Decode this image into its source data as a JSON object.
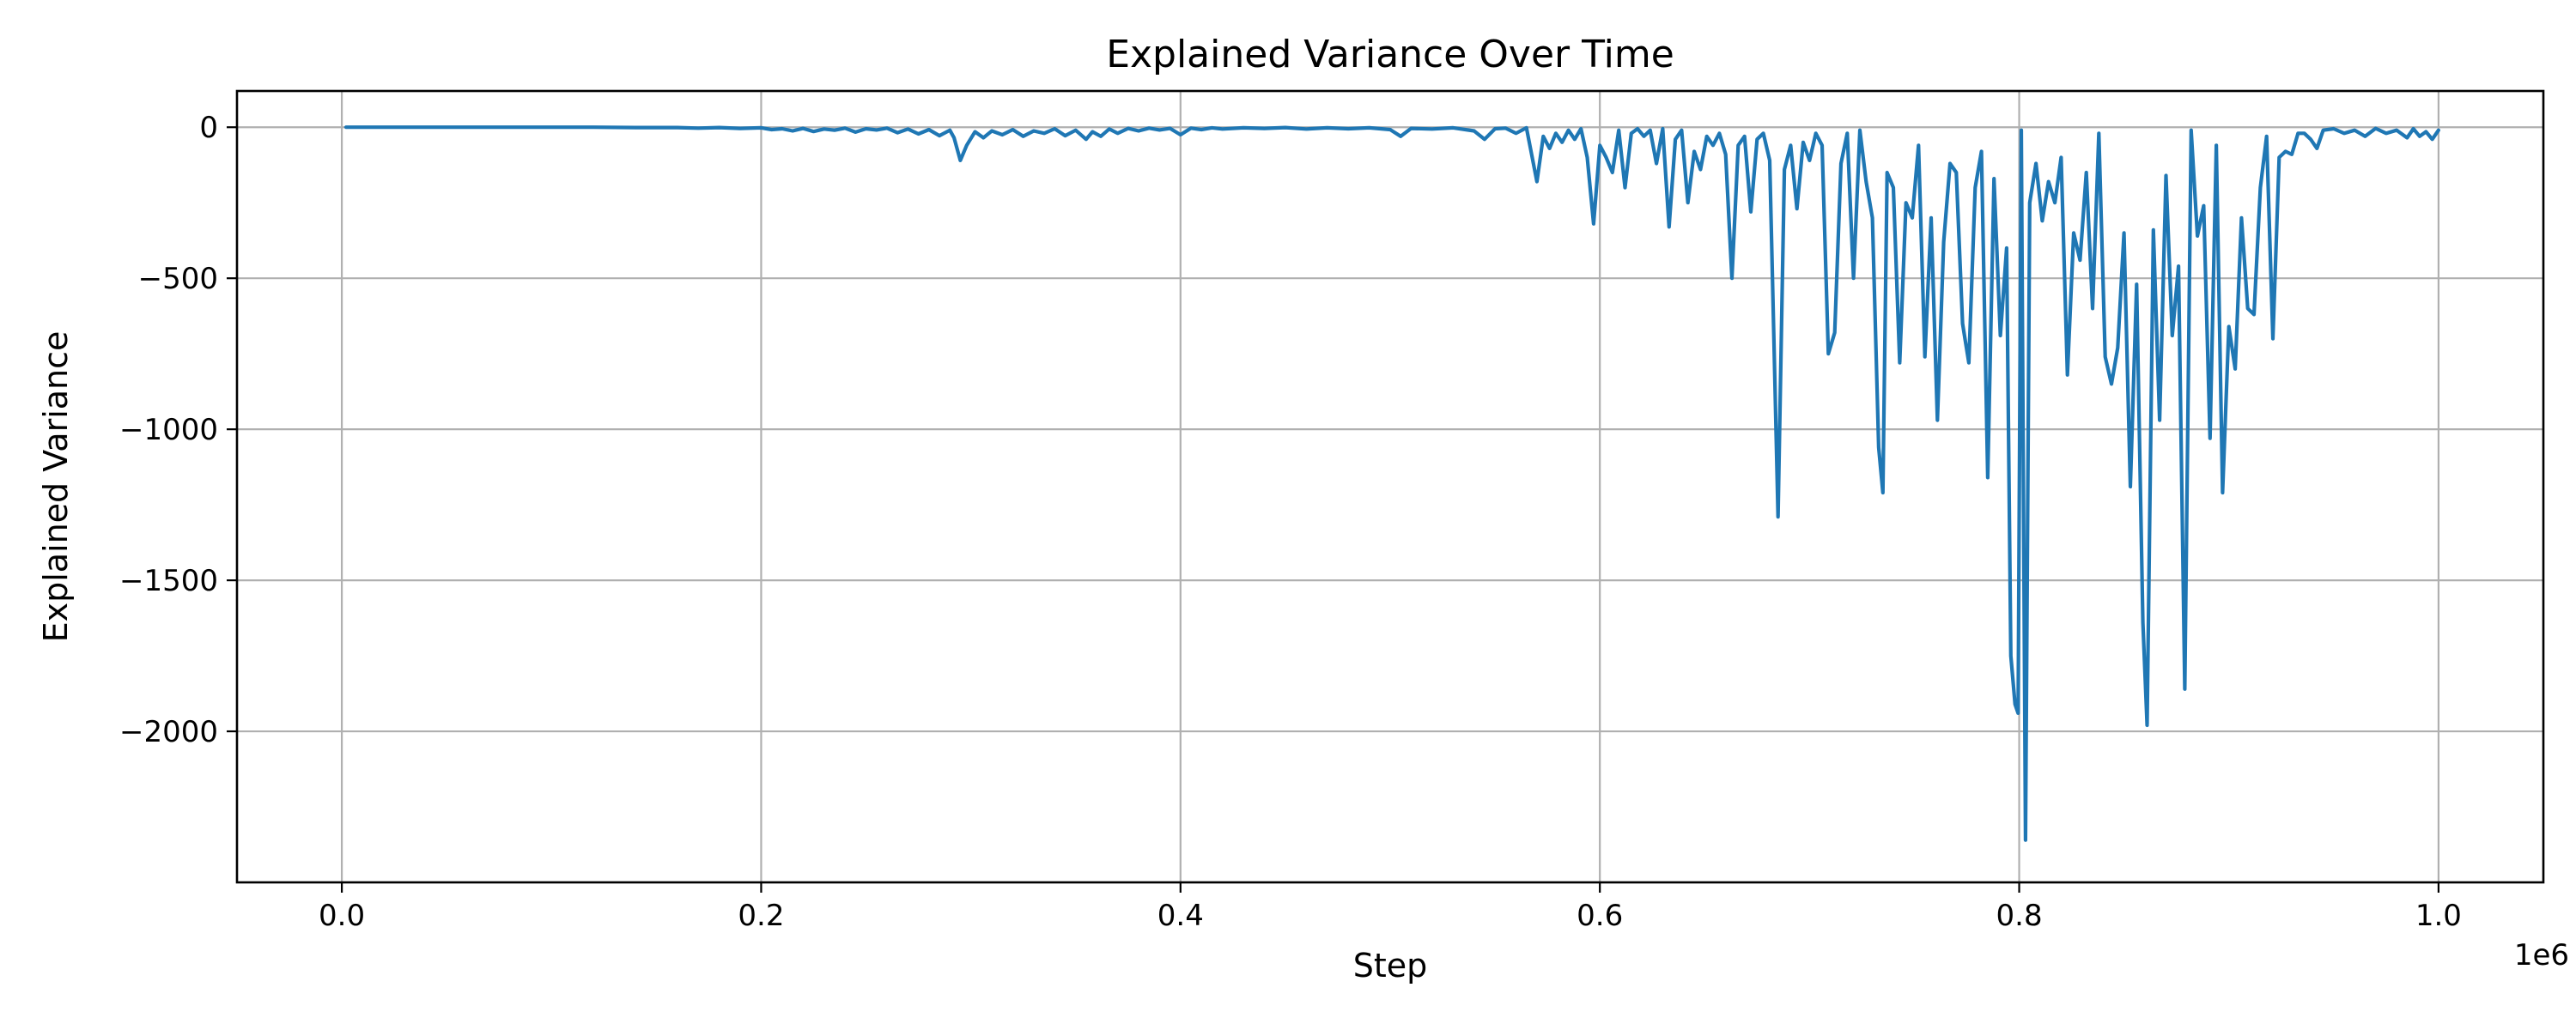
{
  "chart_data": {
    "type": "line",
    "title": "Explained Variance Over Time",
    "xlabel": "Step",
    "ylabel": "Explained Variance",
    "x_offset_label": "1e6",
    "xlim": [
      -50000,
      1050000
    ],
    "ylim": [
      -2500,
      120
    ],
    "x_ticks": [
      0,
      200000,
      400000,
      600000,
      800000,
      1000000
    ],
    "x_tick_labels": [
      "0.0",
      "0.2",
      "0.4",
      "0.6",
      "0.8",
      "1.0"
    ],
    "y_ticks": [
      0,
      -500,
      -1000,
      -1500,
      -2000
    ],
    "y_tick_labels": [
      "0",
      "−500",
      "−1000",
      "−1500",
      "−2000"
    ],
    "grid": true,
    "series_color": "#1f77b4",
    "series": [
      {
        "values": [
          [
            2000,
            0
          ],
          [
            20000,
            0
          ],
          [
            40000,
            0
          ],
          [
            60000,
            0
          ],
          [
            80000,
            0
          ],
          [
            100000,
            0
          ],
          [
            120000,
            0
          ],
          [
            140000,
            -1
          ],
          [
            160000,
            -1
          ],
          [
            170000,
            -3
          ],
          [
            180000,
            -1
          ],
          [
            190000,
            -4
          ],
          [
            200000,
            -2
          ],
          [
            205000,
            -8
          ],
          [
            210000,
            -5
          ],
          [
            215000,
            -12
          ],
          [
            220000,
            -4
          ],
          [
            225000,
            -14
          ],
          [
            230000,
            -6
          ],
          [
            235000,
            -10
          ],
          [
            240000,
            -3
          ],
          [
            245000,
            -16
          ],
          [
            250000,
            -5
          ],
          [
            255000,
            -9
          ],
          [
            260000,
            -3
          ],
          [
            265000,
            -18
          ],
          [
            270000,
            -6
          ],
          [
            275000,
            -22
          ],
          [
            280000,
            -8
          ],
          [
            285000,
            -28
          ],
          [
            290000,
            -10
          ],
          [
            292000,
            -35
          ],
          [
            295000,
            -110
          ],
          [
            298000,
            -60
          ],
          [
            302000,
            -15
          ],
          [
            306000,
            -35
          ],
          [
            310000,
            -12
          ],
          [
            315000,
            -25
          ],
          [
            320000,
            -8
          ],
          [
            325000,
            -30
          ],
          [
            330000,
            -12
          ],
          [
            335000,
            -20
          ],
          [
            340000,
            -5
          ],
          [
            345000,
            -28
          ],
          [
            350000,
            -10
          ],
          [
            355000,
            -40
          ],
          [
            358000,
            -15
          ],
          [
            362000,
            -30
          ],
          [
            366000,
            -6
          ],
          [
            370000,
            -20
          ],
          [
            375000,
            -4
          ],
          [
            380000,
            -12
          ],
          [
            385000,
            -3
          ],
          [
            390000,
            -9
          ],
          [
            395000,
            -4
          ],
          [
            400000,
            -25
          ],
          [
            405000,
            -3
          ],
          [
            410000,
            -8
          ],
          [
            415000,
            -2
          ],
          [
            420000,
            -6
          ],
          [
            430000,
            -2
          ],
          [
            440000,
            -4
          ],
          [
            450000,
            -1
          ],
          [
            460000,
            -6
          ],
          [
            470000,
            -2
          ],
          [
            480000,
            -5
          ],
          [
            490000,
            -2
          ],
          [
            500000,
            -8
          ],
          [
            505000,
            -30
          ],
          [
            510000,
            -4
          ],
          [
            520000,
            -6
          ],
          [
            530000,
            -2
          ],
          [
            540000,
            -12
          ],
          [
            545000,
            -40
          ],
          [
            550000,
            -5
          ],
          [
            555000,
            -3
          ],
          [
            560000,
            -20
          ],
          [
            565000,
            -2
          ],
          [
            570000,
            -180
          ],
          [
            573000,
            -30
          ],
          [
            576000,
            -70
          ],
          [
            579000,
            -20
          ],
          [
            582000,
            -50
          ],
          [
            585000,
            -10
          ],
          [
            588000,
            -40
          ],
          [
            591000,
            -5
          ],
          [
            594000,
            -100
          ],
          [
            597000,
            -320
          ],
          [
            600000,
            -60
          ],
          [
            603000,
            -100
          ],
          [
            606000,
            -150
          ],
          [
            609000,
            -10
          ],
          [
            612000,
            -200
          ],
          [
            615000,
            -20
          ],
          [
            618000,
            -5
          ],
          [
            621000,
            -30
          ],
          [
            624000,
            -10
          ],
          [
            627000,
            -120
          ],
          [
            630000,
            -5
          ],
          [
            633000,
            -330
          ],
          [
            636000,
            -40
          ],
          [
            639000,
            -10
          ],
          [
            642000,
            -250
          ],
          [
            645000,
            -80
          ],
          [
            648000,
            -140
          ],
          [
            651000,
            -30
          ],
          [
            654000,
            -60
          ],
          [
            657000,
            -20
          ],
          [
            660000,
            -90
          ],
          [
            663000,
            -500
          ],
          [
            666000,
            -60
          ],
          [
            669000,
            -30
          ],
          [
            672000,
            -280
          ],
          [
            675000,
            -40
          ],
          [
            678000,
            -20
          ],
          [
            681000,
            -110
          ],
          [
            685000,
            -1290
          ],
          [
            688000,
            -140
          ],
          [
            691000,
            -60
          ],
          [
            694000,
            -270
          ],
          [
            697000,
            -50
          ],
          [
            700000,
            -110
          ],
          [
            703000,
            -20
          ],
          [
            706000,
            -60
          ],
          [
            709000,
            -750
          ],
          [
            712000,
            -680
          ],
          [
            715000,
            -120
          ],
          [
            718000,
            -20
          ],
          [
            721000,
            -500
          ],
          [
            724000,
            -10
          ],
          [
            727000,
            -180
          ],
          [
            730000,
            -300
          ],
          [
            733000,
            -1060
          ],
          [
            735000,
            -1210
          ],
          [
            737000,
            -150
          ],
          [
            740000,
            -200
          ],
          [
            743000,
            -780
          ],
          [
            746000,
            -250
          ],
          [
            749000,
            -300
          ],
          [
            752000,
            -60
          ],
          [
            755000,
            -760
          ],
          [
            758000,
            -300
          ],
          [
            761000,
            -970
          ],
          [
            764000,
            -380
          ],
          [
            767000,
            -120
          ],
          [
            770000,
            -150
          ],
          [
            773000,
            -650
          ],
          [
            776000,
            -780
          ],
          [
            779000,
            -200
          ],
          [
            782000,
            -80
          ],
          [
            785000,
            -1160
          ],
          [
            788000,
            -170
          ],
          [
            791000,
            -690
          ],
          [
            794000,
            -400
          ],
          [
            796000,
            -1750
          ],
          [
            798000,
            -1910
          ],
          [
            799500,
            -1940
          ],
          [
            801000,
            -10
          ],
          [
            803000,
            -2360
          ],
          [
            805000,
            -250
          ],
          [
            808000,
            -120
          ],
          [
            811000,
            -310
          ],
          [
            814000,
            -180
          ],
          [
            817000,
            -250
          ],
          [
            820000,
            -100
          ],
          [
            823000,
            -820
          ],
          [
            826000,
            -350
          ],
          [
            829000,
            -440
          ],
          [
            832000,
            -150
          ],
          [
            835000,
            -600
          ],
          [
            838000,
            -20
          ],
          [
            841000,
            -760
          ],
          [
            844000,
            -850
          ],
          [
            847000,
            -730
          ],
          [
            850000,
            -350
          ],
          [
            853000,
            -1190
          ],
          [
            856000,
            -520
          ],
          [
            859000,
            -1640
          ],
          [
            861000,
            -1980
          ],
          [
            864000,
            -340
          ],
          [
            867000,
            -970
          ],
          [
            870000,
            -160
          ],
          [
            873000,
            -690
          ],
          [
            876000,
            -460
          ],
          [
            879000,
            -1860
          ],
          [
            882000,
            -10
          ],
          [
            885000,
            -360
          ],
          [
            888000,
            -260
          ],
          [
            891000,
            -1030
          ],
          [
            894000,
            -60
          ],
          [
            897000,
            -1210
          ],
          [
            900000,
            -660
          ],
          [
            903000,
            -800
          ],
          [
            906000,
            -300
          ],
          [
            909000,
            -600
          ],
          [
            912000,
            -620
          ],
          [
            915000,
            -200
          ],
          [
            918000,
            -30
          ],
          [
            921000,
            -700
          ],
          [
            924000,
            -100
          ],
          [
            927000,
            -80
          ],
          [
            930000,
            -90
          ],
          [
            933000,
            -20
          ],
          [
            936000,
            -20
          ],
          [
            939000,
            -40
          ],
          [
            942000,
            -70
          ],
          [
            945000,
            -10
          ],
          [
            950000,
            -5
          ],
          [
            955000,
            -20
          ],
          [
            960000,
            -10
          ],
          [
            965000,
            -30
          ],
          [
            970000,
            -4
          ],
          [
            975000,
            -20
          ],
          [
            980000,
            -10
          ],
          [
            985000,
            -35
          ],
          [
            988000,
            -5
          ],
          [
            991000,
            -30
          ],
          [
            994000,
            -15
          ],
          [
            997000,
            -40
          ],
          [
            1000000,
            -10
          ]
        ]
      }
    ]
  }
}
